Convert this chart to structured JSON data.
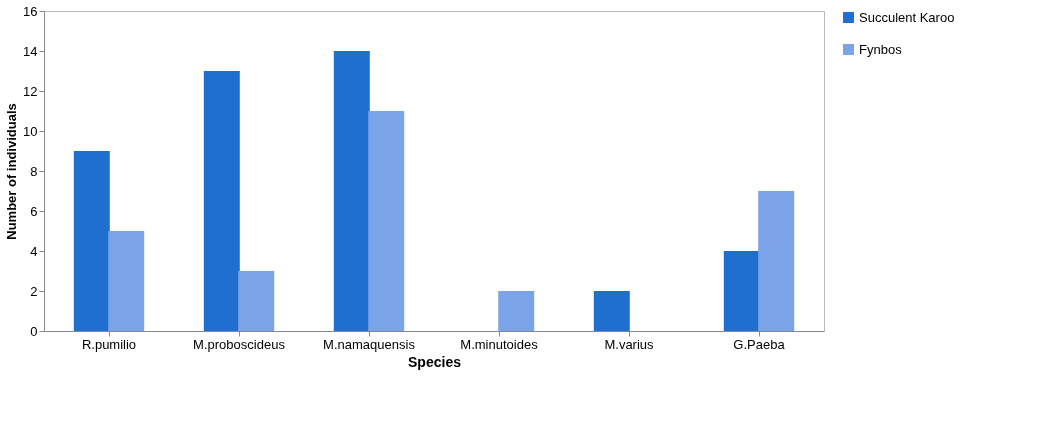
{
  "chart_data": {
    "type": "bar",
    "xlabel": "Species",
    "ylabel": "Number of individuals",
    "categories": [
      "R.pumilio",
      "M.proboscideus",
      "M.namaquensis",
      "M.minutoides",
      "M.varius",
      "G.Paeba"
    ],
    "series": [
      {
        "name": "Succulent Karoo",
        "color": "#1f6fd0",
        "values": [
          9,
          13,
          14,
          0,
          2,
          4
        ]
      },
      {
        "name": "Fynbos",
        "color": "#7ba4e8",
        "values": [
          5,
          3,
          11,
          2,
          0,
          7
        ]
      }
    ],
    "ylim": [
      0,
      16
    ],
    "yticks": [
      0,
      2,
      4,
      6,
      8,
      10,
      12,
      14,
      16
    ],
    "grid": false,
    "legend": "right"
  }
}
